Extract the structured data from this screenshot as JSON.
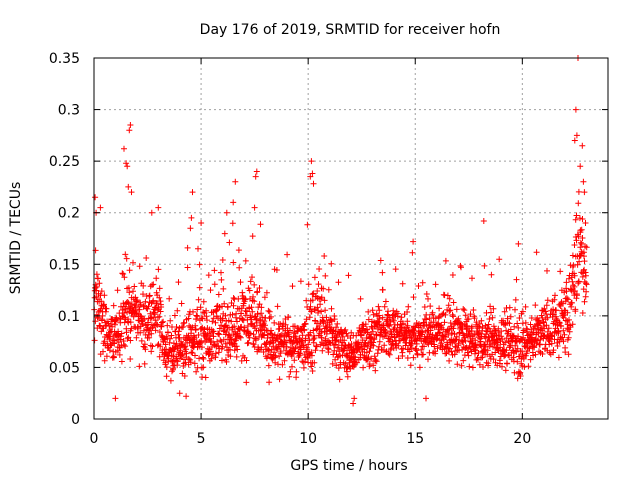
{
  "chart_data": {
    "type": "scatter",
    "title": "Day 176 of 2019, SRMTID for receiver hofn",
    "xlabel": "GPS time / hours",
    "ylabel": "SRMTID / TECUs",
    "xlim": [
      0,
      24
    ],
    "ylim": [
      0,
      0.35
    ],
    "x_ticks": [
      0,
      5,
      10,
      15,
      20
    ],
    "x_tick_labels": [
      "0",
      "5",
      "10",
      "15",
      "20"
    ],
    "y_ticks": [
      0,
      0.05,
      0.1,
      0.15,
      0.2,
      0.25,
      0.3,
      0.35
    ],
    "y_tick_labels": [
      "0",
      "0.05",
      "0.1",
      "0.15",
      "0.2",
      "0.25",
      "0.3",
      "0.35"
    ],
    "grid": true,
    "marker": "plus",
    "color": "#ff0000",
    "series": [
      {
        "name": "SRMTID",
        "profile_hours": [
          0,
          0.3,
          0.7,
          1.0,
          1.3,
          1.7,
          2.0,
          2.5,
          3.0,
          3.3,
          3.7,
          4.0,
          4.5,
          5.0,
          5.5,
          6.0,
          6.5,
          7.0,
          7.5,
          8.0,
          8.5,
          9.0,
          9.5,
          10.0,
          10.5,
          11.0,
          11.5,
          12.0,
          12.5,
          13.0,
          14.0,
          15.0,
          16.0,
          17.0,
          18.0,
          19.0,
          20.0,
          20.5,
          21.0,
          21.5,
          22.0,
          22.3,
          22.5,
          22.7,
          23.0
        ],
        "profile_mean": [
          0.11,
          0.1,
          0.08,
          0.085,
          0.095,
          0.11,
          0.1,
          0.095,
          0.1,
          0.06,
          0.07,
          0.065,
          0.075,
          0.085,
          0.08,
          0.09,
          0.085,
          0.095,
          0.11,
          0.08,
          0.07,
          0.075,
          0.07,
          0.08,
          0.1,
          0.08,
          0.07,
          0.06,
          0.075,
          0.08,
          0.085,
          0.08,
          0.085,
          0.08,
          0.075,
          0.075,
          0.07,
          0.08,
          0.085,
          0.09,
          0.095,
          0.12,
          0.15,
          0.17,
          0.14
        ],
        "profile_spread": [
          0.04,
          0.035,
          0.03,
          0.035,
          0.04,
          0.045,
          0.04,
          0.035,
          0.04,
          0.02,
          0.025,
          0.025,
          0.03,
          0.035,
          0.03,
          0.035,
          0.035,
          0.04,
          0.045,
          0.03,
          0.025,
          0.025,
          0.025,
          0.035,
          0.04,
          0.03,
          0.025,
          0.02,
          0.025,
          0.025,
          0.025,
          0.025,
          0.025,
          0.025,
          0.025,
          0.025,
          0.025,
          0.025,
          0.025,
          0.03,
          0.03,
          0.04,
          0.05,
          0.05,
          0.04
        ],
        "outliers": [
          [
            0.05,
            0.215
          ],
          [
            0.1,
            0.2
          ],
          [
            0.3,
            0.205
          ],
          [
            1.4,
            0.262
          ],
          [
            1.5,
            0.248
          ],
          [
            1.55,
            0.245
          ],
          [
            1.6,
            0.225
          ],
          [
            1.65,
            0.28
          ],
          [
            1.7,
            0.285
          ],
          [
            1.75,
            0.22
          ],
          [
            2.7,
            0.2
          ],
          [
            3.0,
            0.205
          ],
          [
            4.5,
            0.185
          ],
          [
            4.55,
            0.195
          ],
          [
            4.6,
            0.22
          ],
          [
            5.0,
            0.19
          ],
          [
            6.2,
            0.2
          ],
          [
            6.5,
            0.21
          ],
          [
            6.6,
            0.23
          ],
          [
            7.5,
            0.205
          ],
          [
            7.55,
            0.235
          ],
          [
            7.6,
            0.24
          ],
          [
            10.1,
            0.235
          ],
          [
            10.15,
            0.25
          ],
          [
            10.2,
            0.238
          ],
          [
            10.25,
            0.228
          ],
          [
            14.9,
            0.172
          ],
          [
            18.2,
            0.192
          ],
          [
            22.45,
            0.27
          ],
          [
            22.5,
            0.3
          ],
          [
            22.55,
            0.275
          ],
          [
            22.6,
            0.35
          ],
          [
            22.7,
            0.245
          ],
          [
            22.8,
            0.265
          ],
          [
            22.85,
            0.23
          ],
          [
            22.9,
            0.22
          ],
          [
            22.95,
            0.19
          ],
          [
            12.1,
            0.015
          ],
          [
            12.15,
            0.02
          ],
          [
            1.0,
            0.02
          ],
          [
            15.5,
            0.02
          ],
          [
            4.0,
            0.025
          ],
          [
            4.3,
            0.022
          ]
        ]
      }
    ]
  }
}
